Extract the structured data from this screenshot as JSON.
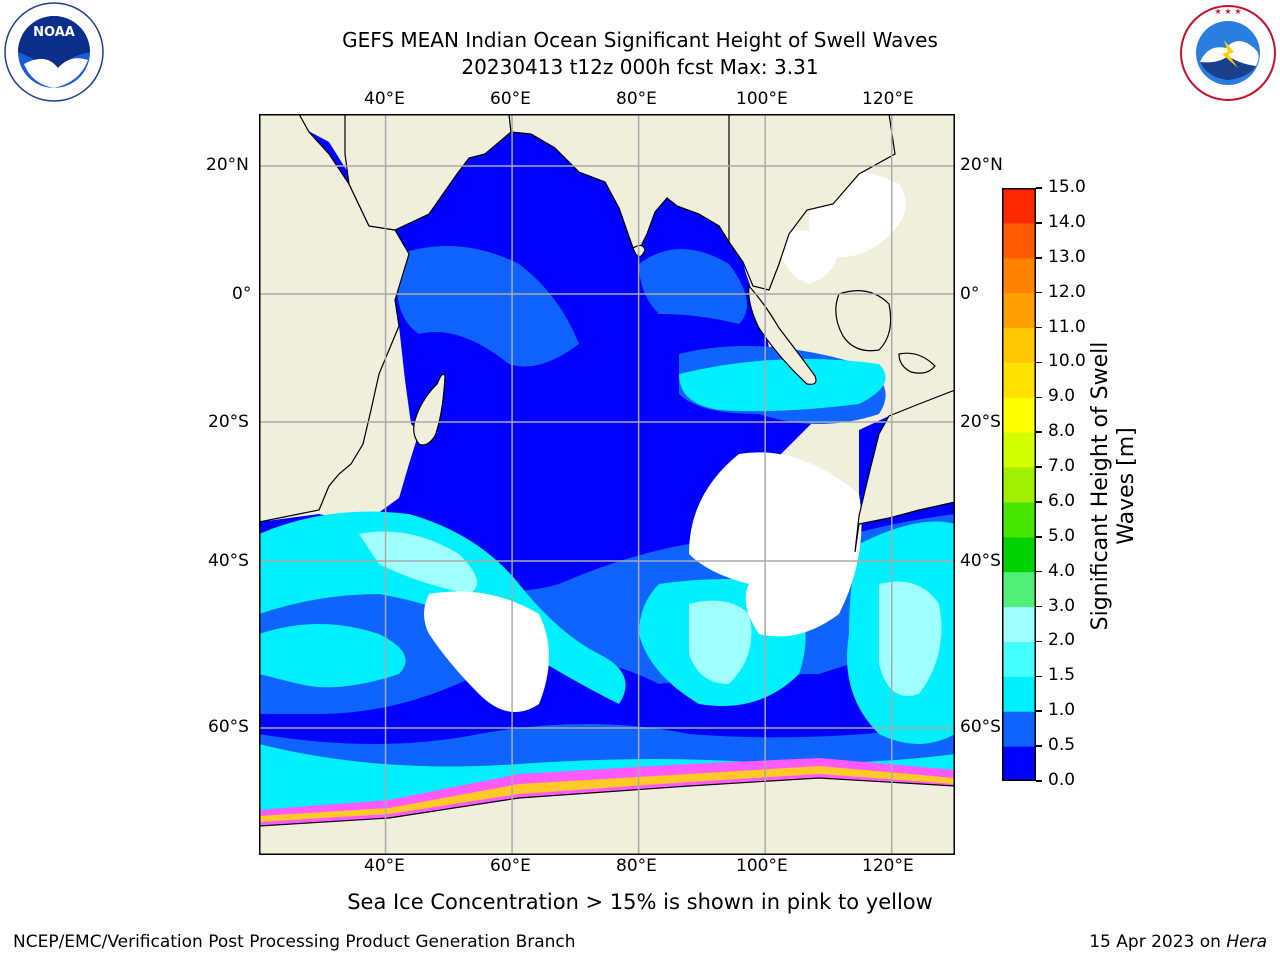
{
  "title": {
    "line1": "GEFS MEAN Indian Ocean Significant Height of Swell Waves",
    "line2": "20230413 t12z 000h fcst   Max: 3.31"
  },
  "logos": {
    "left": {
      "text": "NOAA",
      "ring": "NATIONAL OCEANIC AND ATMOSPHERIC ADMINISTRATION · U.S. DEPARTMENT OF COMMERCE"
    },
    "right": {
      "ring": "NATIONAL WEATHER SERVICE"
    }
  },
  "map": {
    "lon_labels": [
      "40°E",
      "60°E",
      "80°E",
      "100°E",
      "120°E"
    ],
    "lat_labels": [
      "20°N",
      "0°",
      "20°S",
      "40°S",
      "60°S"
    ],
    "lon_range": [
      20,
      130
    ],
    "lat_range": [
      -72,
      28
    ],
    "grid": true
  },
  "colorbar": {
    "label_line1": "Significant Height of Swell",
    "label_line2": "Waves [m]",
    "ticks": [
      "0.0",
      "0.5",
      "1.0",
      "1.5",
      "2.0",
      "3.0",
      "4.0",
      "5.0",
      "6.0",
      "7.0",
      "8.0",
      "9.0",
      "10.0",
      "11.0",
      "12.0",
      "13.0",
      "14.0",
      "15.0"
    ],
    "colors": [
      "#0000ff",
      "#0f64ff",
      "#00f0ff",
      "#46ffff",
      "#a0ffff",
      "#50f078",
      "#00d200",
      "#46e600",
      "#a0f000",
      "#d2ff00",
      "#ffff00",
      "#ffe100",
      "#ffc800",
      "#ffa000",
      "#ff8200",
      "#ff5a00",
      "#ff2800",
      "#ff0000"
    ]
  },
  "caption": "Sea Ice Concentration > 15% is shown in pink to yellow",
  "footer": {
    "left": "NCEP/EMC/Verification Post Processing Product Generation Branch",
    "right_prefix": "15 Apr 2023 on ",
    "right_host": "Hera"
  }
}
